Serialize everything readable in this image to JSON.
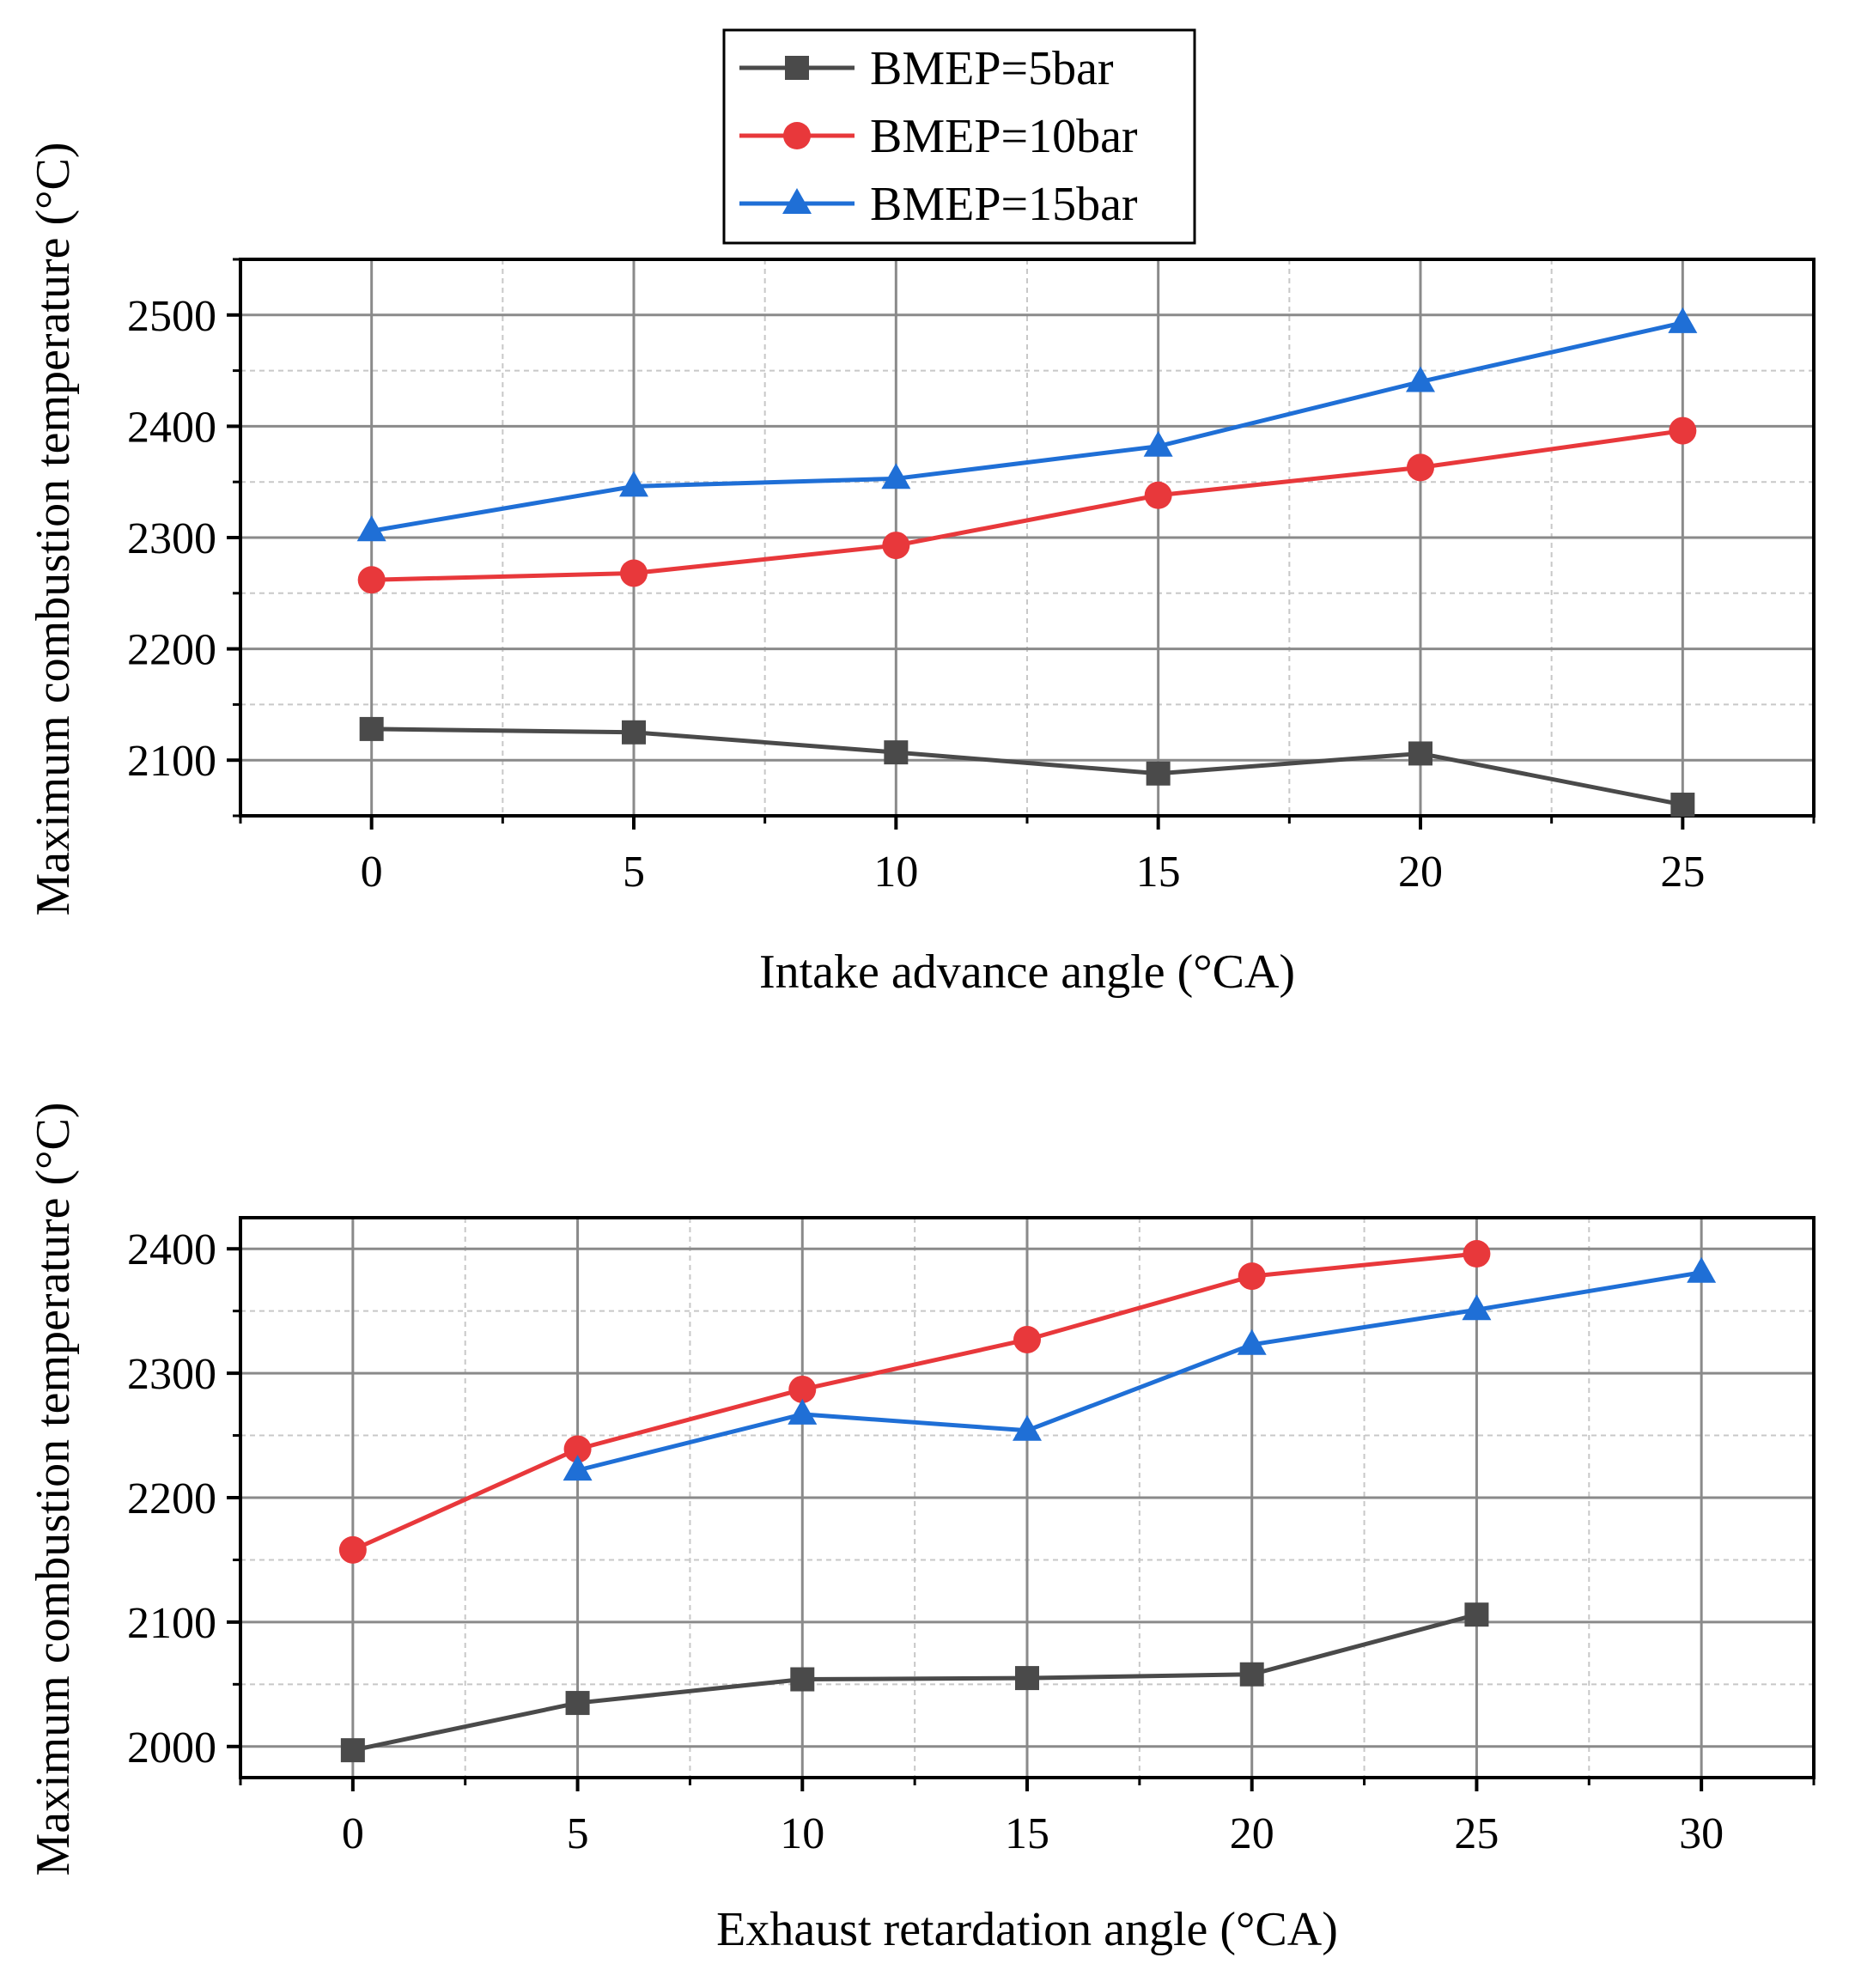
{
  "colors": {
    "series_1": "#4a4a4a",
    "series_2": "#e8383b",
    "series_3": "#1f6fd6",
    "grid_major": "#8a8a8a",
    "grid_minor": "#c8c8c8",
    "frame": "#000000"
  },
  "legend": {
    "placement": "top-center",
    "entries": [
      {
        "label": "BMEP=5bar",
        "marker": "square",
        "color": "#4a4a4a"
      },
      {
        "label": "BMEP=10bar",
        "marker": "circle",
        "color": "#e8383b"
      },
      {
        "label": "BMEP=15bar",
        "marker": "triangle",
        "color": "#1f6fd6"
      }
    ]
  },
  "chart_data": [
    {
      "type": "line",
      "title": "",
      "xlabel": "Intake advance angle (°CA)",
      "ylabel": "Maximum combustion temperature (°C)",
      "xlim": [
        -2.5,
        27.5
      ],
      "ylim": [
        2050,
        2550
      ],
      "xticks": [
        0,
        5,
        10,
        15,
        20,
        25
      ],
      "yticks": [
        2100,
        2200,
        2300,
        2400,
        2500
      ],
      "xtick_labels": [
        "0",
        "5",
        "10",
        "15",
        "20",
        "25"
      ],
      "ytick_labels": [
        "2100",
        "2200",
        "2300",
        "2400",
        "2500"
      ],
      "grid": true,
      "series": [
        {
          "name": "BMEP=5bar",
          "marker": "square",
          "color": "#4a4a4a",
          "x": [
            0,
            5,
            10,
            15,
            20,
            25
          ],
          "y": [
            2128,
            2125,
            2107,
            2088,
            2106,
            2060
          ]
        },
        {
          "name": "BMEP=10bar",
          "marker": "circle",
          "color": "#e8383b",
          "x": [
            0,
            5,
            10,
            15,
            20,
            25
          ],
          "y": [
            2262,
            2268,
            2293,
            2338,
            2363,
            2396
          ]
        },
        {
          "name": "BMEP=15bar",
          "marker": "triangle",
          "color": "#1f6fd6",
          "x": [
            0,
            5,
            10,
            15,
            20,
            25
          ],
          "y": [
            2306,
            2346,
            2353,
            2382,
            2440,
            2493
          ]
        }
      ]
    },
    {
      "type": "line",
      "title": "",
      "xlabel": "Exhaust retardation angle (°CA)",
      "ylabel": "Maximum combustion temperature (°C)",
      "xlim": [
        -2.5,
        32.5
      ],
      "ylim": [
        1975,
        2425
      ],
      "xticks": [
        0,
        5,
        10,
        15,
        20,
        25,
        30
      ],
      "yticks": [
        2000,
        2100,
        2200,
        2300,
        2400
      ],
      "xtick_labels": [
        "0",
        "5",
        "10",
        "15",
        "20",
        "25",
        "30"
      ],
      "ytick_labels": [
        "2000",
        "2100",
        "2200",
        "2300",
        "2400"
      ],
      "grid": true,
      "series": [
        {
          "name": "BMEP=5bar",
          "marker": "square",
          "color": "#4a4a4a",
          "x": [
            0,
            5,
            10,
            15,
            20,
            25
          ],
          "y": [
            1997,
            2035,
            2054,
            2055,
            2058,
            2106
          ]
        },
        {
          "name": "BMEP=10bar",
          "marker": "circle",
          "color": "#e8383b",
          "x": [
            0,
            5,
            10,
            15,
            20,
            25
          ],
          "y": [
            2158,
            2239,
            2287,
            2327,
            2378,
            2396
          ]
        },
        {
          "name": "BMEP=15bar",
          "marker": "triangle",
          "color": "#1f6fd6",
          "x": [
            5,
            10,
            15,
            20,
            25,
            30
          ],
          "y": [
            2222,
            2267,
            2254,
            2323,
            2351,
            2381
          ]
        }
      ]
    }
  ]
}
